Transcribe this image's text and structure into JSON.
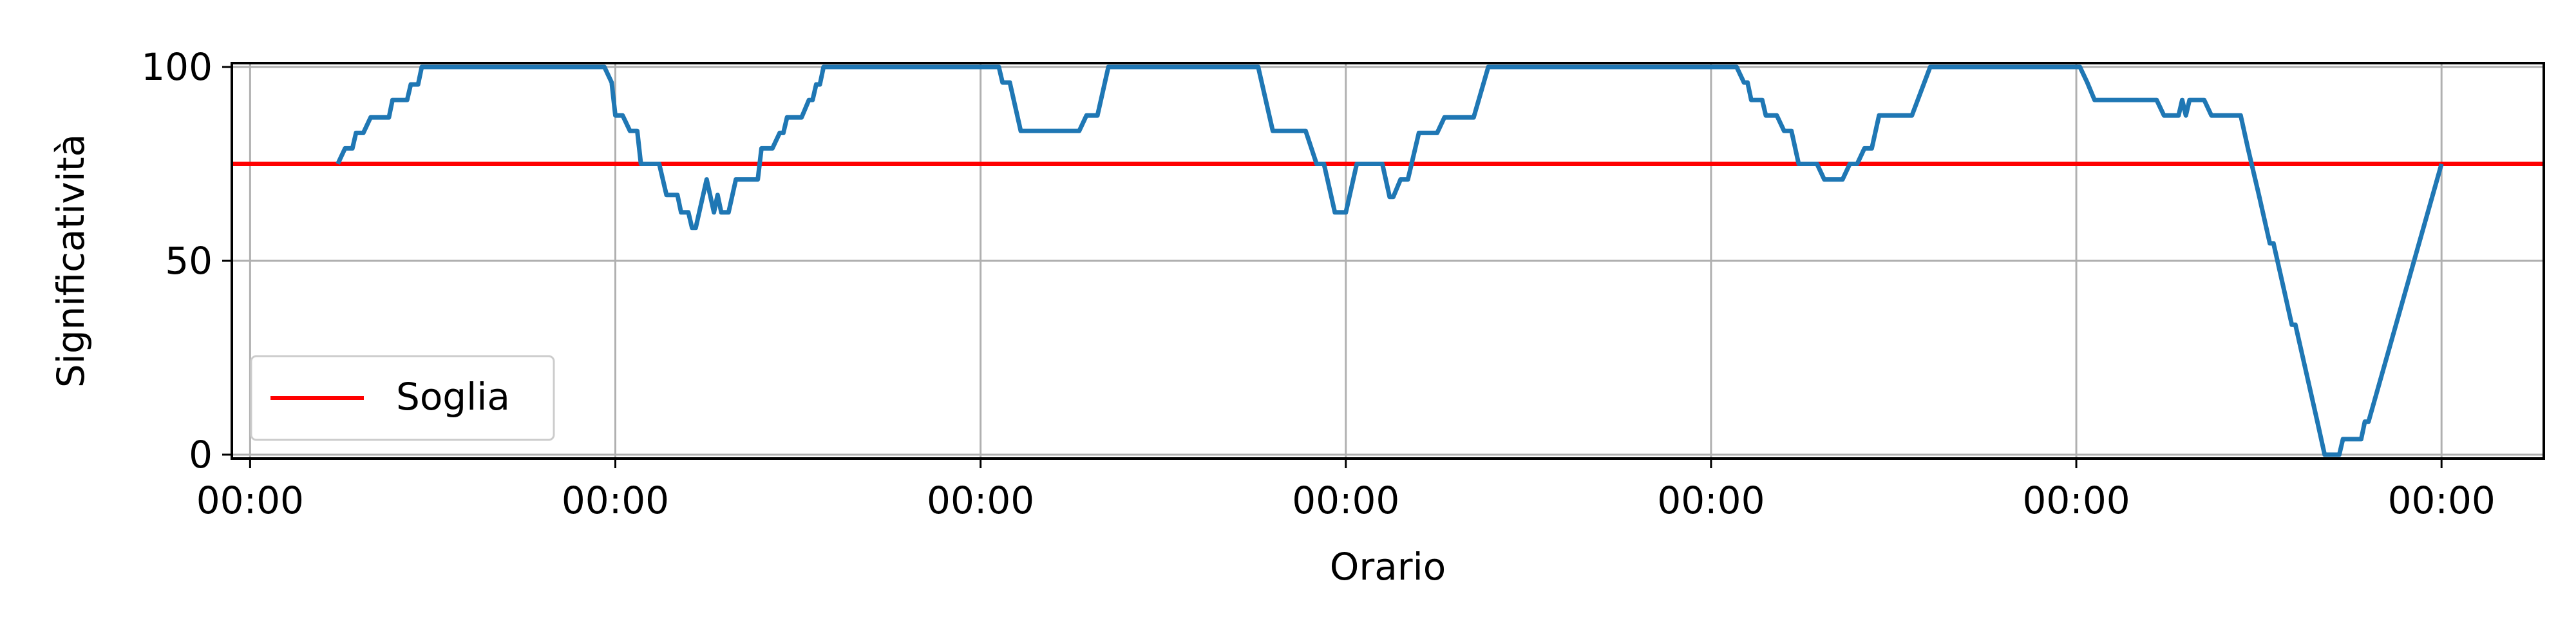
{
  "chart_data": {
    "type": "line",
    "title": "",
    "xlabel": "Orario",
    "ylabel": "Significatività",
    "x_tick_labels": [
      "00:00",
      "00:00",
      "00:00",
      "00:00",
      "00:00",
      "00:00",
      "00:00"
    ],
    "y_ticks": [
      0,
      50,
      100
    ],
    "xlim": [
      -0.05,
      6.28
    ],
    "ylim": [
      -1,
      101
    ],
    "grid": true,
    "legend": {
      "placement": "lower-left",
      "entries": [
        {
          "label": "Soglia",
          "color": "#ff0000"
        }
      ]
    },
    "threshold": {
      "name": "Soglia",
      "value": 75,
      "color": "#ff0000"
    },
    "series": [
      {
        "color": "#1f77b4",
        "points": [
          [
            0.24,
            75
          ],
          [
            0.26,
            79
          ],
          [
            0.28,
            79
          ],
          [
            0.29,
            83
          ],
          [
            0.31,
            83
          ],
          [
            0.33,
            87
          ],
          [
            0.38,
            87
          ],
          [
            0.39,
            91.5
          ],
          [
            0.43,
            91.5
          ],
          [
            0.44,
            95.5
          ],
          [
            0.46,
            95.5
          ],
          [
            0.47,
            100
          ],
          [
            0.97,
            100
          ],
          [
            0.99,
            96
          ],
          [
            1.0,
            87.5
          ],
          [
            1.02,
            87.5
          ],
          [
            1.04,
            83.5
          ],
          [
            1.06,
            83.5
          ],
          [
            1.07,
            75
          ],
          [
            1.12,
            75
          ],
          [
            1.14,
            67
          ],
          [
            1.17,
            67
          ],
          [
            1.18,
            62.5
          ],
          [
            1.2,
            62.5
          ],
          [
            1.21,
            58.5
          ],
          [
            1.22,
            58.5
          ],
          [
            1.25,
            71
          ],
          [
            1.27,
            62.5
          ],
          [
            1.28,
            67
          ],
          [
            1.29,
            62.5
          ],
          [
            1.31,
            62.5
          ],
          [
            1.33,
            71
          ],
          [
            1.39,
            71
          ],
          [
            1.4,
            79
          ],
          [
            1.43,
            79
          ],
          [
            1.45,
            83
          ],
          [
            1.46,
            83
          ],
          [
            1.47,
            87
          ],
          [
            1.51,
            87
          ],
          [
            1.53,
            91.5
          ],
          [
            1.54,
            91.5
          ],
          [
            1.55,
            95.5
          ],
          [
            1.56,
            95.5
          ],
          [
            1.57,
            100
          ],
          [
            2.05,
            100
          ],
          [
            2.06,
            96
          ],
          [
            2.08,
            96
          ],
          [
            2.11,
            83.5
          ],
          [
            2.27,
            83.5
          ],
          [
            2.29,
            87.5
          ],
          [
            2.32,
            87.5
          ],
          [
            2.35,
            100
          ],
          [
            2.76,
            100
          ],
          [
            2.8,
            83.5
          ],
          [
            2.89,
            83.5
          ],
          [
            2.92,
            75
          ],
          [
            2.94,
            75
          ],
          [
            2.97,
            62.5
          ],
          [
            3.0,
            62.5
          ],
          [
            3.03,
            75
          ],
          [
            3.1,
            75
          ],
          [
            3.12,
            66.5
          ],
          [
            3.13,
            66.5
          ],
          [
            3.15,
            71
          ],
          [
            3.17,
            71
          ],
          [
            3.2,
            83
          ],
          [
            3.25,
            83
          ],
          [
            3.27,
            87
          ],
          [
            3.35,
            87
          ],
          [
            3.39,
            100
          ],
          [
            4.07,
            100
          ],
          [
            4.09,
            96
          ],
          [
            4.1,
            96
          ],
          [
            4.11,
            91.5
          ],
          [
            4.14,
            91.5
          ],
          [
            4.15,
            87.5
          ],
          [
            4.18,
            87.5
          ],
          [
            4.2,
            83.5
          ],
          [
            4.22,
            83.5
          ],
          [
            4.24,
            75
          ],
          [
            4.29,
            75
          ],
          [
            4.31,
            71
          ],
          [
            4.36,
            71
          ],
          [
            4.38,
            75
          ],
          [
            4.4,
            75
          ],
          [
            4.42,
            79
          ],
          [
            4.44,
            79
          ],
          [
            4.46,
            87.5
          ],
          [
            4.55,
            87.5
          ],
          [
            4.6,
            100
          ],
          [
            5.01,
            100
          ],
          [
            5.03,
            96
          ],
          [
            5.05,
            91.5
          ],
          [
            5.22,
            91.5
          ],
          [
            5.24,
            87.5
          ],
          [
            5.28,
            87.5
          ],
          [
            5.29,
            91.5
          ],
          [
            5.3,
            87.5
          ],
          [
            5.31,
            91.5
          ],
          [
            5.35,
            91.5
          ],
          [
            5.37,
            87.5
          ],
          [
            5.45,
            87.5
          ],
          [
            5.47,
            79
          ],
          [
            5.5,
            67
          ],
          [
            5.53,
            54.5
          ],
          [
            5.54,
            54.5
          ],
          [
            5.57,
            42
          ],
          [
            5.59,
            33.5
          ],
          [
            5.6,
            33.5
          ],
          [
            5.63,
            21
          ],
          [
            5.66,
            8.5
          ],
          [
            5.68,
            0
          ],
          [
            5.72,
            0
          ],
          [
            5.73,
            4
          ],
          [
            5.78,
            4
          ],
          [
            5.79,
            8.5
          ],
          [
            5.8,
            8.5
          ],
          [
            6.0,
            75
          ]
        ]
      }
    ]
  }
}
